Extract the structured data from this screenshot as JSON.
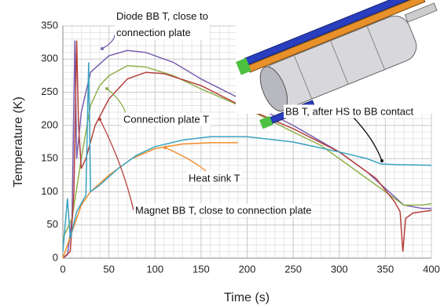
{
  "chart_data": {
    "type": "line",
    "x_label": "Time (s)",
    "y_label": "Temperature (K)",
    "xlim": [
      0,
      400
    ],
    "xticks": [
      0,
      50,
      100,
      150,
      200,
      250,
      300,
      350,
      400
    ],
    "ylim": [
      0,
      350
    ],
    "yticks": [
      0,
      50,
      100,
      150,
      200,
      250,
      300,
      350
    ],
    "grid": "minor",
    "series": [
      {
        "name": "Diode BB T, close to connection plate",
        "color": "#7b5fb0",
        "x": [
          0,
          5,
          10,
          13,
          15,
          20,
          30,
          50,
          70,
          90,
          120,
          150,
          200,
          250,
          300,
          330,
          350,
          370,
          390,
          400
        ],
        "values": [
          0,
          5,
          60,
          328,
          150,
          220,
          280,
          305,
          313,
          310,
          295,
          270,
          235,
          200,
          160,
          130,
          105,
          80,
          75,
          75
        ]
      },
      {
        "name": "Connection plate T",
        "color": "#8fb04a",
        "x": [
          0,
          10,
          20,
          30,
          40,
          50,
          70,
          90,
          120,
          150,
          200,
          250,
          280,
          300,
          330,
          350,
          370,
          390,
          400
        ],
        "values": [
          30,
          60,
          150,
          230,
          260,
          275,
          290,
          288,
          275,
          255,
          225,
          190,
          170,
          150,
          120,
          100,
          80,
          80,
          82
        ]
      },
      {
        "name": "Magnet BB T, close to connection plate",
        "color": "#b5403c",
        "x": [
          0,
          8,
          12,
          15,
          17,
          20,
          25,
          35,
          50,
          70,
          90,
          110,
          150,
          200,
          250,
          300,
          340,
          360,
          366,
          369,
          372,
          380,
          400
        ],
        "values": [
          0,
          10,
          100,
          328,
          200,
          135,
          150,
          200,
          240,
          270,
          280,
          278,
          260,
          225,
          195,
          160,
          120,
          85,
          70,
          10,
          60,
          68,
          72
        ]
      },
      {
        "name": "Heat sink T",
        "color": "#f08c2a",
        "x": [
          0,
          10,
          20,
          30,
          50,
          75,
          100,
          130,
          160,
          190
        ],
        "values": [
          0,
          40,
          80,
          100,
          125,
          150,
          165,
          172,
          174,
          174
        ]
      },
      {
        "name": "BB T, after HS to BB contact",
        "color": "#3aa3c0",
        "x": [
          0,
          5,
          8,
          15,
          25,
          28,
          30,
          40,
          60,
          80,
          100,
          130,
          160,
          200,
          250,
          300,
          330,
          345,
          360,
          400
        ],
        "values": [
          10,
          90,
          30,
          70,
          95,
          295,
          100,
          110,
          135,
          155,
          168,
          178,
          183,
          183,
          175,
          160,
          150,
          142,
          141,
          140
        ]
      }
    ]
  }
}
